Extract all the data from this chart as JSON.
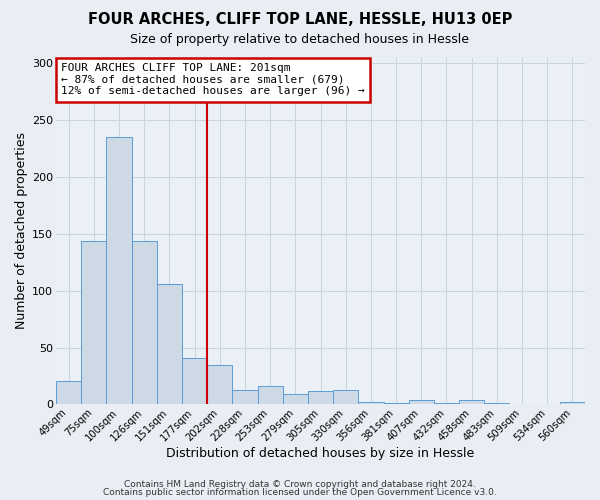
{
  "title": "FOUR ARCHES, CLIFF TOP LANE, HESSLE, HU13 0EP",
  "subtitle": "Size of property relative to detached houses in Hessle",
  "xlabel": "Distribution of detached houses by size in Hessle",
  "ylabel": "Number of detached properties",
  "bar_labels": [
    "49sqm",
    "75sqm",
    "100sqm",
    "126sqm",
    "151sqm",
    "177sqm",
    "202sqm",
    "228sqm",
    "253sqm",
    "279sqm",
    "305sqm",
    "330sqm",
    "356sqm",
    "381sqm",
    "407sqm",
    "432sqm",
    "458sqm",
    "483sqm",
    "509sqm",
    "534sqm",
    "560sqm"
  ],
  "bar_values": [
    21,
    144,
    235,
    144,
    106,
    41,
    35,
    13,
    16,
    9,
    12,
    13,
    2,
    1,
    4,
    1,
    4,
    1,
    0,
    0,
    2
  ],
  "bar_color": "#cdd9e5",
  "bar_edge_color": "#5b9bd5",
  "vline_color": "#cc0000",
  "vline_index": 6,
  "annotation_text": "FOUR ARCHES CLIFF TOP LANE: 201sqm\n← 87% of detached houses are smaller (679)\n12% of semi-detached houses are larger (96) →",
  "annotation_box_color": "#ffffff",
  "annotation_box_edge": "#cc0000",
  "ylim": [
    0,
    305
  ],
  "yticks": [
    0,
    50,
    100,
    150,
    200,
    250,
    300
  ],
  "footer1": "Contains HM Land Registry data © Crown copyright and database right 2024.",
  "footer2": "Contains public sector information licensed under the Open Government Licence v3.0.",
  "bg_color": "#e8eef4",
  "plot_bg_color": "#eaf0f6",
  "grid_color": "#c8d4e0"
}
